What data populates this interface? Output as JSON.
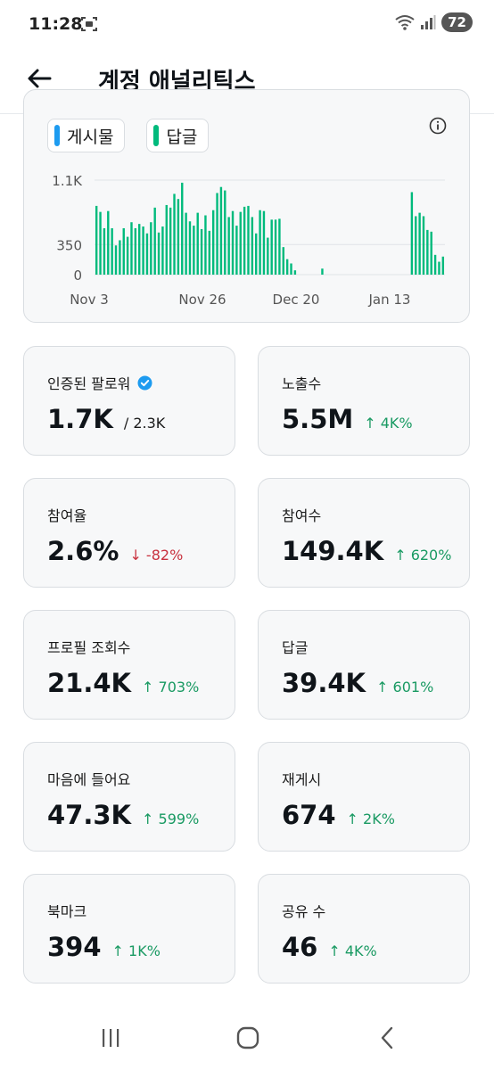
{
  "status_bar": {
    "time": "11:28",
    "battery": "72"
  },
  "header": {
    "title": "계정 애널리틱스"
  },
  "chart": {
    "legend": [
      {
        "label": "게시물",
        "color": "#1d9bf0"
      },
      {
        "label": "답글",
        "color": "#00ba7c"
      }
    ]
  },
  "chart_data": {
    "type": "bar",
    "y_ticks": [
      "1.1K",
      "350",
      "0"
    ],
    "x_tick_labels": [
      "Nov 3",
      "Nov 26",
      "Dec 20",
      "Jan 13"
    ],
    "ylim": [
      0,
      1100
    ],
    "grid": true,
    "series": [
      {
        "name": "답글",
        "color": "#00ba7c",
        "values": [
          800,
          730,
          540,
          740,
          540,
          340,
          400,
          540,
          440,
          610,
          540,
          590,
          560,
          480,
          610,
          780,
          490,
          560,
          810,
          780,
          940,
          880,
          1070,
          720,
          620,
          570,
          720,
          530,
          690,
          510,
          750,
          950,
          1020,
          980,
          670,
          740,
          570,
          730,
          790,
          800,
          670,
          480,
          750,
          740,
          430,
          640,
          640,
          650,
          320,
          180,
          130,
          50,
          0,
          0,
          0,
          0,
          0,
          0,
          70,
          0,
          0,
          0,
          0,
          0,
          0,
          0,
          0,
          0,
          0,
          0,
          0,
          0,
          0,
          0,
          0,
          0,
          0,
          0,
          0,
          0,
          0,
          960,
          680,
          720,
          680,
          520,
          500,
          230,
          150,
          210
        ]
      }
    ]
  },
  "stats": [
    {
      "label": "인증된 팔로워",
      "value": "1.7K",
      "sub": "/ 2.3K",
      "verified": true
    },
    {
      "label": "노출수",
      "value": "5.5M",
      "change": "↑ 4K%",
      "dir": "up"
    },
    {
      "label": "참여율",
      "value": "2.6%",
      "change": "↓ -82%",
      "dir": "down"
    },
    {
      "label": "참여수",
      "value": "149.4K",
      "change": "↑ 620%",
      "dir": "up"
    },
    {
      "label": "프로필 조회수",
      "value": "21.4K",
      "change": "↑ 703%",
      "dir": "up"
    },
    {
      "label": "답글",
      "value": "39.4K",
      "change": "↑ 601%",
      "dir": "up"
    },
    {
      "label": "마음에 들어요",
      "value": "47.3K",
      "change": "↑ 599%",
      "dir": "up"
    },
    {
      "label": "재게시",
      "value": "674",
      "change": "↑ 2K%",
      "dir": "up"
    },
    {
      "label": "북마크",
      "value": "394",
      "change": "↑ 1K%",
      "dir": "up"
    },
    {
      "label": "공유 수",
      "value": "46",
      "change": "↑ 4K%",
      "dir": "up"
    }
  ]
}
